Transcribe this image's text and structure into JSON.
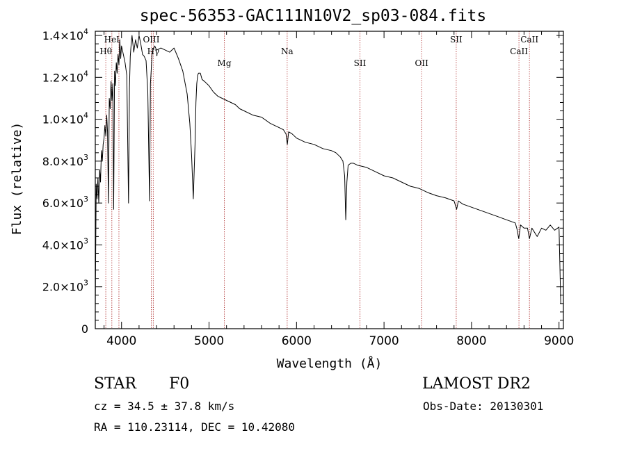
{
  "chart_data": {
    "type": "line",
    "title": "spec-56353-GAC111N10V2_sp03-084.fits",
    "xlabel": "Wavelength (Å)",
    "ylabel": "Flux (relative)",
    "xlim": [
      3700,
      9050
    ],
    "ylim": [
      0,
      14200
    ],
    "xticks": [
      4000,
      5000,
      6000,
      7000,
      8000,
      9000
    ],
    "xtick_labels": [
      "4000",
      "5000",
      "6000",
      "7000",
      "8000",
      "9000"
    ],
    "yticks": [
      0,
      2000,
      4000,
      6000,
      8000,
      10000,
      12000,
      14000
    ],
    "ytick_labels": [
      {
        "mant": "0",
        "exp": ""
      },
      {
        "mant": "2.0×10",
        "exp": "3"
      },
      {
        "mant": "4.0×10",
        "exp": "3"
      },
      {
        "mant": "6.0×10",
        "exp": "3"
      },
      {
        "mant": "8.0×10",
        "exp": "3"
      },
      {
        "mant": "1.0×10",
        "exp": "4"
      },
      {
        "mant": "1.2×10",
        "exp": "4"
      },
      {
        "mant": "1.4×10",
        "exp": "4"
      }
    ],
    "grid": false,
    "series": [
      {
        "color": "#000000",
        "x": [
          3700,
          3710,
          3720,
          3730,
          3740,
          3750,
          3760,
          3770,
          3780,
          3790,
          3800,
          3810,
          3820,
          3830,
          3840,
          3850,
          3860,
          3870,
          3880,
          3890,
          3900,
          3910,
          3920,
          3930,
          3940,
          3950,
          3960,
          3970,
          3980,
          3990,
          4000,
          4020,
          4040,
          4060,
          4080,
          4090,
          4100,
          4110,
          4120,
          4140,
          4160,
          4180,
          4200,
          4220,
          4240,
          4260,
          4280,
          4300,
          4320,
          4330,
          4340,
          4350,
          4360,
          4380,
          4400,
          4450,
          4500,
          4550,
          4600,
          4650,
          4700,
          4750,
          4780,
          4800,
          4820,
          4840,
          4850,
          4860,
          4870,
          4880,
          4900,
          4920,
          4950,
          5000,
          5050,
          5100,
          5150,
          5200,
          5250,
          5300,
          5350,
          5400,
          5500,
          5600,
          5700,
          5800,
          5850,
          5880,
          5895,
          5910,
          5950,
          6000,
          6100,
          6200,
          6300,
          6400,
          6450,
          6500,
          6530,
          6550,
          6563,
          6575,
          6590,
          6620,
          6650,
          6700,
          6800,
          6900,
          7000,
          7100,
          7200,
          7300,
          7400,
          7500,
          7600,
          7700,
          7800,
          7830,
          7850,
          7900,
          8000,
          8100,
          8200,
          8300,
          8400,
          8500,
          8520,
          8540,
          8560,
          8600,
          8640,
          8662,
          8690,
          8750,
          8800,
          8850,
          8900,
          8950,
          9000,
          9020
        ],
        "y": [
          1000,
          6900,
          6200,
          7200,
          6000,
          7600,
          7000,
          8500,
          8000,
          8800,
          9100,
          9700,
          9200,
          10200,
          9400,
          6000,
          11000,
          10500,
          11800,
          10900,
          11700,
          5700,
          12300,
          11600,
          12700,
          12200,
          13100,
          12600,
          13800,
          12900,
          13500,
          13100,
          12700,
          12100,
          6000,
          11500,
          13000,
          13600,
          14000,
          13200,
          13800,
          13400,
          14000,
          13600,
          13100,
          13000,
          12800,
          11300,
          6100,
          11700,
          12400,
          13200,
          13300,
          13500,
          13300,
          13400,
          13300,
          13200,
          13400,
          12900,
          12300,
          11200,
          9800,
          8300,
          6200,
          8800,
          10800,
          11700,
          12100,
          12200,
          12200,
          11900,
          11800,
          11600,
          11300,
          11100,
          11000,
          10900,
          10800,
          10700,
          10500,
          10400,
          10200,
          10100,
          9800,
          9600,
          9500,
          9300,
          8800,
          9400,
          9300,
          9100,
          8900,
          8800,
          8600,
          8500,
          8400,
          8200,
          8000,
          7300,
          5200,
          7000,
          7800,
          7900,
          7900,
          7800,
          7700,
          7500,
          7300,
          7200,
          7000,
          6800,
          6700,
          6500,
          6350,
          6250,
          6100,
          5700,
          6100,
          5950,
          5800,
          5650,
          5500,
          5350,
          5200,
          5050,
          4750,
          4300,
          4950,
          4800,
          4800,
          4300,
          4800,
          4400,
          4800,
          4700,
          4950,
          4700,
          4850,
          1200
        ]
      }
    ],
    "lines": [
      {
        "x": 3820,
        "label": "Hθ",
        "row": 2
      },
      {
        "x": 3889,
        "label": "HeI",
        "row": 1
      },
      {
        "x": 3970,
        "label": "",
        "row": 0
      },
      {
        "x": 4340,
        "label": "OIII",
        "row": 1
      },
      {
        "x": 4363,
        "label": "Hγ",
        "row": 2
      },
      {
        "x": 5175,
        "label": "Mg",
        "row": 3
      },
      {
        "x": 5893,
        "label": "Na",
        "row": 2
      },
      {
        "x": 6725,
        "label": "SII",
        "row": 3
      },
      {
        "x": 7430,
        "label": "OII",
        "row": 3
      },
      {
        "x": 7825,
        "label": "SII",
        "row": 1
      },
      {
        "x": 8542,
        "label": "CaII",
        "row": 2
      },
      {
        "x": 8662,
        "label": "CaII",
        "row": 1
      }
    ]
  },
  "footer": {
    "class": "STAR",
    "subclass": "F0",
    "survey": "LAMOST DR2",
    "cz": "cz = 34.5 ± 37.8 km/s",
    "obsdate": "Obs-Date: 20130301",
    "radec": "RA = 110.23114, DEC =  10.42080"
  }
}
